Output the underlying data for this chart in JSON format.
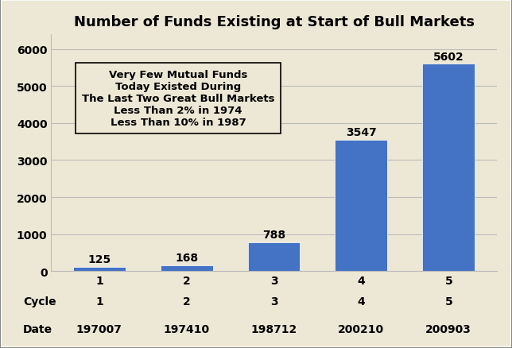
{
  "title": "Number of Funds Existing at Start of Bull Markets",
  "categories": [
    "1",
    "2",
    "3",
    "4",
    "5"
  ],
  "dates": [
    "197007",
    "197410",
    "198712",
    "200210",
    "200903"
  ],
  "values": [
    125,
    168,
    788,
    3547,
    5602
  ],
  "bar_color": "#4472C4",
  "background_color": "#EDE8D5",
  "ylim": [
    0,
    6400
  ],
  "yticks": [
    0,
    1000,
    2000,
    3000,
    4000,
    5000,
    6000
  ],
  "annotation_text": "Very Few Mutual Funds\nToday Existed During\nThe Last Two Great Bull Markets\nLess Than 2% in 1974\nLess Than 10% in 1987",
  "title_fontsize": 13,
  "tick_fontsize": 10,
  "value_fontsize": 10,
  "xlabel_cycle": "Cycle",
  "xlabel_date": "Date",
  "grid_color": "#BBBBBB",
  "border_color": "#888888"
}
